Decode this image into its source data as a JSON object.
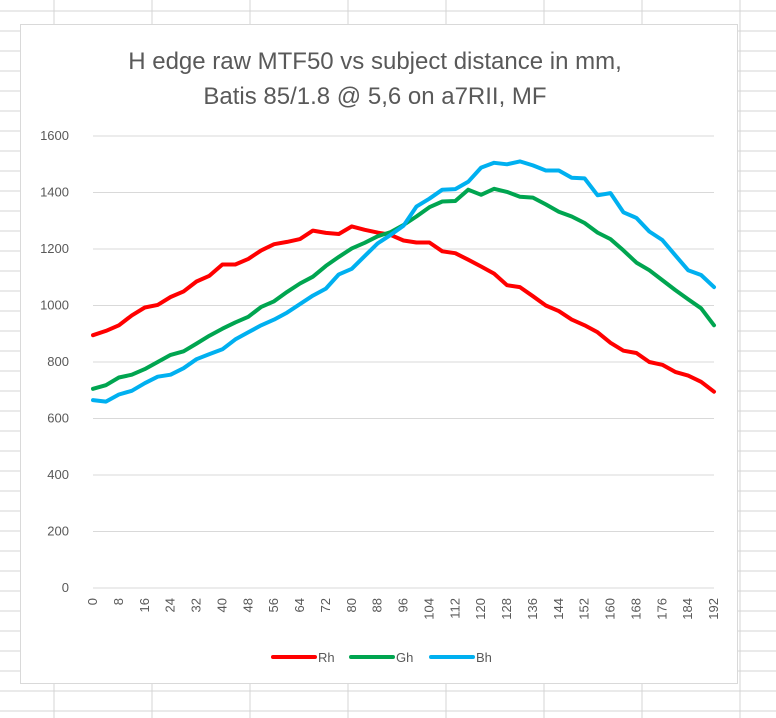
{
  "chart_data": {
    "type": "line",
    "title_lines": [
      "H edge raw MTF50 vs subject distance in mm,",
      "Batis 85/1.8 @ 5,6 on a7RII, MF"
    ],
    "xlabel": "",
    "ylabel": "",
    "ylim": [
      0,
      1600
    ],
    "yticks": [
      "0",
      "200",
      "400",
      "600",
      "800",
      "1000",
      "1200",
      "1400",
      "1600"
    ],
    "xtick_labels": [
      "0",
      "8",
      "16",
      "24",
      "32",
      "40",
      "48",
      "56",
      "64",
      "72",
      "80",
      "88",
      "96",
      "104",
      "112",
      "120",
      "128",
      "136",
      "144",
      "152",
      "160",
      "168",
      "176",
      "184",
      "192"
    ],
    "x": [
      0,
      4,
      8,
      12,
      16,
      20,
      24,
      28,
      32,
      36,
      40,
      44,
      48,
      52,
      56,
      60,
      64,
      68,
      72,
      76,
      80,
      84,
      88,
      92,
      96,
      100,
      104,
      108,
      112,
      116,
      120,
      124,
      128,
      132,
      136,
      140,
      144,
      148,
      152,
      156,
      160,
      164,
      168,
      172,
      176,
      180,
      184,
      188,
      192
    ],
    "grid": "horizontal",
    "legend_position": "bottom",
    "series": [
      {
        "name": "Rh",
        "color": "#ff0000",
        "values": [
          895,
          910,
          930,
          965,
          993,
          1002,
          1030,
          1050,
          1085,
          1105,
          1145,
          1145,
          1165,
          1195,
          1217,
          1225,
          1235,
          1265,
          1257,
          1253,
          1280,
          1268,
          1258,
          1250,
          1230,
          1223,
          1223,
          1192,
          1185,
          1162,
          1138,
          1113,
          1072,
          1065,
          1033,
          1000,
          980,
          950,
          930,
          905,
          868,
          840,
          832,
          800,
          790,
          765,
          752,
          730,
          695
        ]
      },
      {
        "name": "Gh",
        "color": "#00a550",
        "values": [
          705,
          718,
          745,
          755,
          775,
          800,
          825,
          838,
          865,
          893,
          918,
          940,
          960,
          995,
          1015,
          1048,
          1078,
          1102,
          1140,
          1172,
          1202,
          1222,
          1245,
          1260,
          1285,
          1315,
          1348,
          1368,
          1370,
          1410,
          1392,
          1413,
          1402,
          1385,
          1382,
          1358,
          1332,
          1315,
          1292,
          1258,
          1235,
          1195,
          1152,
          1125,
          1090,
          1055,
          1022,
          990,
          930
        ]
      },
      {
        "name": "Bh",
        "color": "#00b0f0",
        "values": [
          665,
          660,
          685,
          698,
          725,
          748,
          755,
          778,
          810,
          828,
          845,
          880,
          905,
          930,
          950,
          975,
          1005,
          1035,
          1060,
          1110,
          1130,
          1175,
          1220,
          1250,
          1282,
          1350,
          1378,
          1410,
          1412,
          1438,
          1488,
          1505,
          1500,
          1510,
          1496,
          1478,
          1478,
          1452,
          1450,
          1390,
          1398,
          1330,
          1310,
          1262,
          1232,
          1178,
          1125,
          1108,
          1065
        ]
      }
    ]
  }
}
